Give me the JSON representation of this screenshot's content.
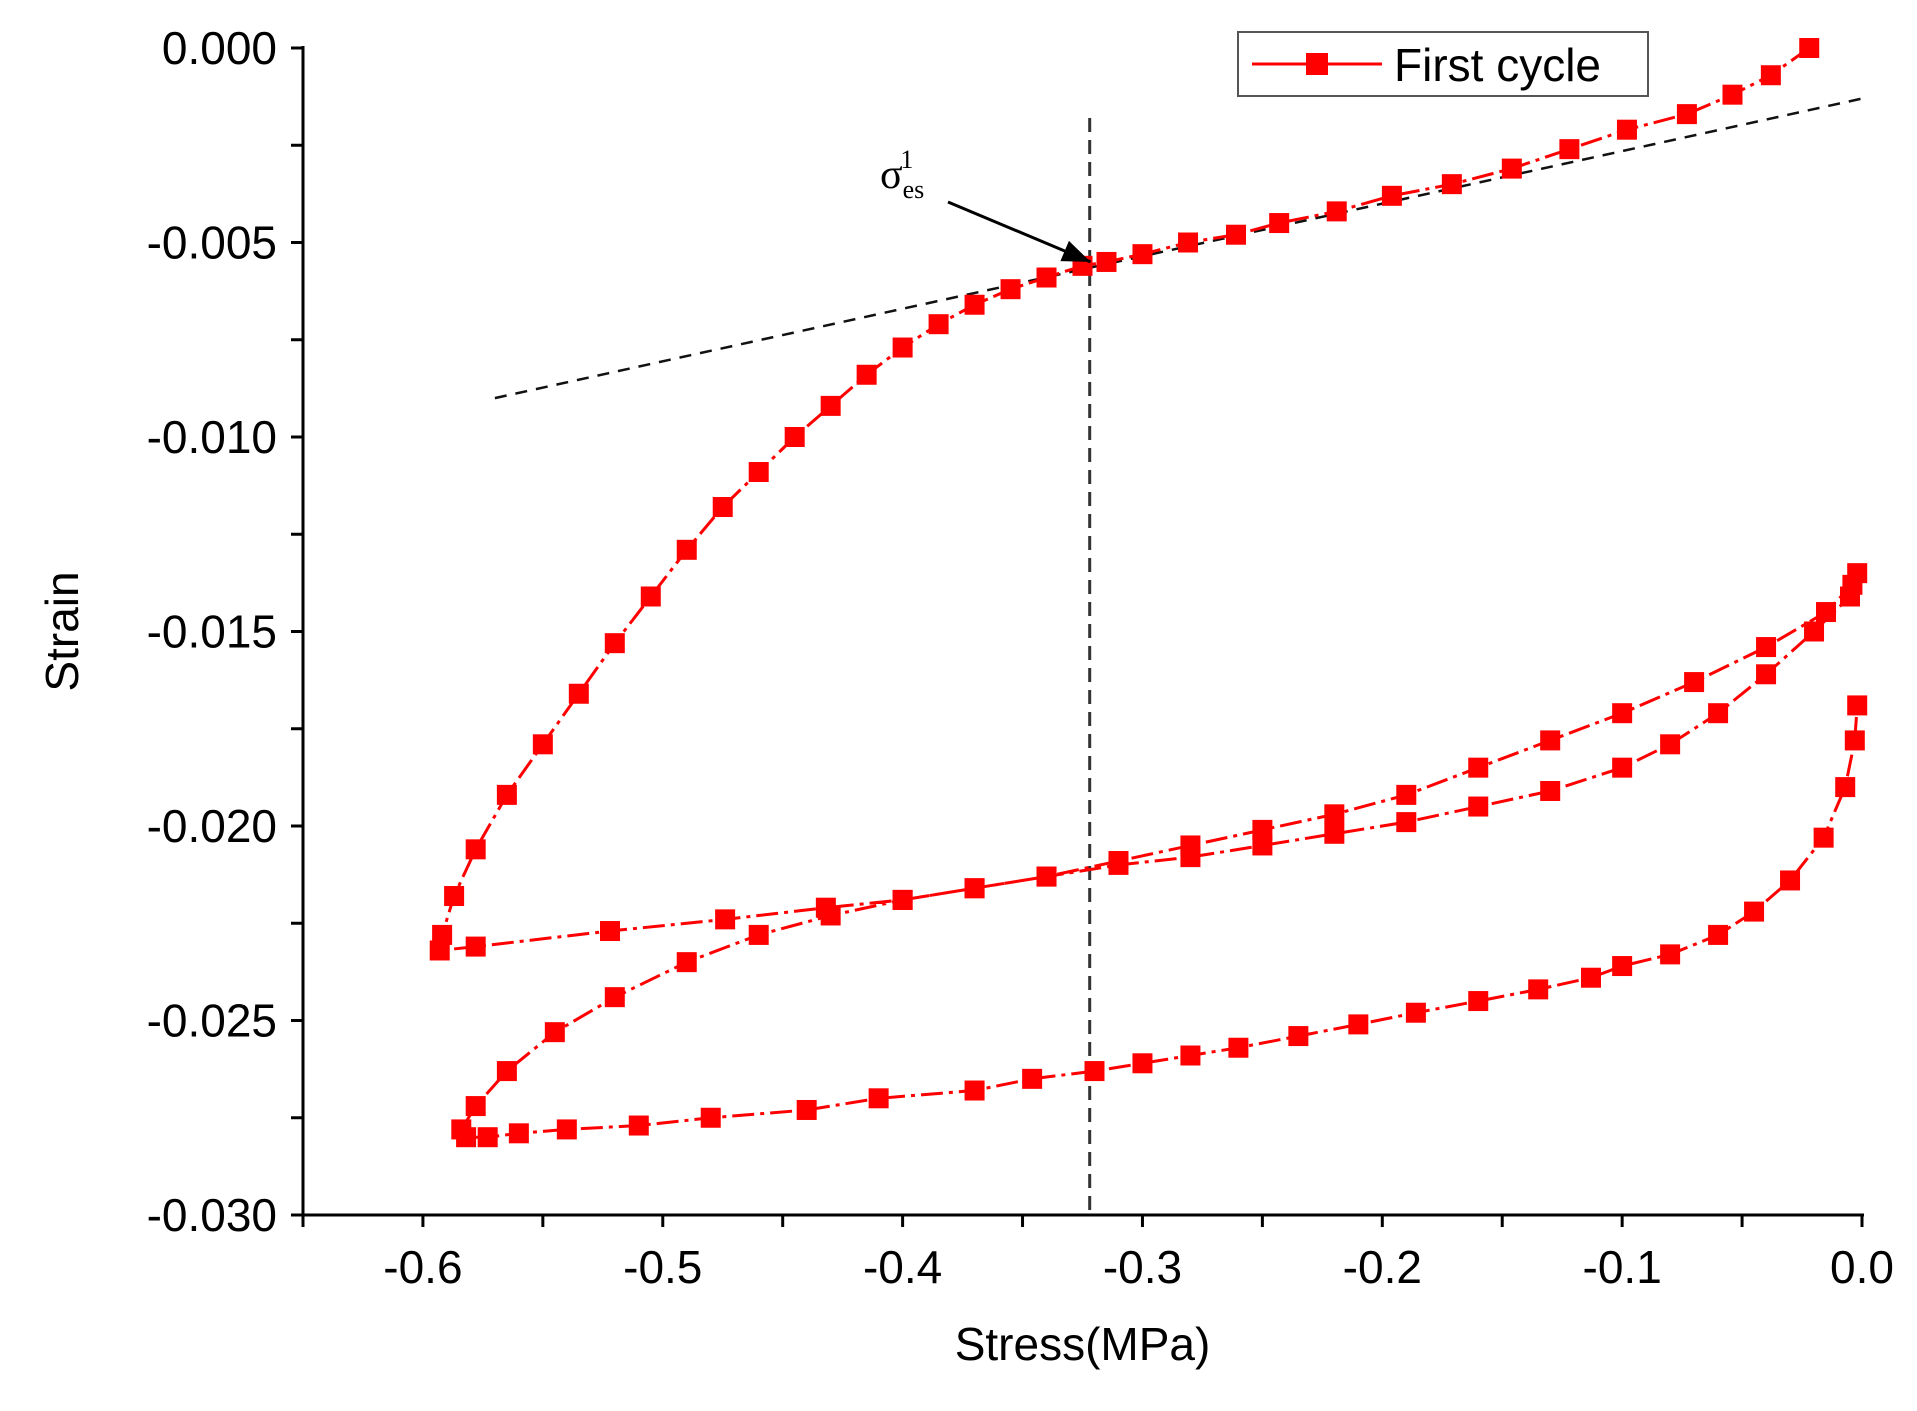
{
  "chart_data": {
    "type": "line",
    "xlabel": "Stress(MPa)",
    "ylabel": "Strain",
    "xlim": [
      -0.65,
      0.0
    ],
    "ylim": [
      -0.03,
      0.0
    ],
    "x_ticks": [
      "-0.6",
      "-0.5",
      "-0.4",
      "-0.3",
      "-0.2",
      "-0.1",
      "0.0"
    ],
    "y_ticks": [
      "0.000",
      "-0.005",
      "-0.010",
      "-0.015",
      "-0.020",
      "-0.025",
      "-0.030"
    ],
    "x_tick_values": [
      -0.6,
      -0.5,
      -0.4,
      -0.3,
      -0.2,
      -0.1,
      0.0
    ],
    "y_tick_values": [
      0.0,
      -0.005,
      -0.01,
      -0.015,
      -0.02,
      -0.025,
      -0.03
    ],
    "grid": false,
    "legend_position": "top-right",
    "series_color": "#ff0000",
    "series": [
      {
        "name": "First cycle",
        "points": [
          [
            -0.022,
            0.0
          ],
          [
            -0.038,
            -0.0007
          ],
          [
            -0.054,
            -0.0012
          ],
          [
            -0.073,
            -0.0017
          ],
          [
            -0.098,
            -0.0021
          ],
          [
            -0.122,
            -0.0026
          ],
          [
            -0.146,
            -0.0031
          ],
          [
            -0.171,
            -0.0035
          ],
          [
            -0.196,
            -0.0038
          ],
          [
            -0.219,
            -0.0042
          ],
          [
            -0.243,
            -0.0045
          ],
          [
            -0.261,
            -0.0048
          ],
          [
            -0.281,
            -0.005
          ],
          [
            -0.3,
            -0.0053
          ],
          [
            -0.315,
            -0.0055
          ],
          [
            -0.325,
            -0.0056
          ],
          [
            -0.34,
            -0.0059
          ],
          [
            -0.355,
            -0.0062
          ],
          [
            -0.37,
            -0.0066
          ],
          [
            -0.385,
            -0.0071
          ],
          [
            -0.4,
            -0.0077
          ],
          [
            -0.415,
            -0.0084
          ],
          [
            -0.43,
            -0.0092
          ],
          [
            -0.445,
            -0.01
          ],
          [
            -0.46,
            -0.0109
          ],
          [
            -0.475,
            -0.0118
          ],
          [
            -0.49,
            -0.0129
          ],
          [
            -0.505,
            -0.0141
          ],
          [
            -0.52,
            -0.0153
          ],
          [
            -0.535,
            -0.0166
          ],
          [
            -0.55,
            -0.0179
          ],
          [
            -0.565,
            -0.0192
          ],
          [
            -0.578,
            -0.0206
          ],
          [
            -0.587,
            -0.0218
          ],
          [
            -0.592,
            -0.0228
          ],
          [
            -0.593,
            -0.0232
          ],
          [
            -0.578,
            -0.0231
          ],
          [
            -0.522,
            -0.0227
          ],
          [
            -0.474,
            -0.0224
          ],
          [
            -0.432,
            -0.0221
          ],
          [
            -0.4,
            -0.0219
          ],
          [
            -0.37,
            -0.0216
          ],
          [
            -0.34,
            -0.0213
          ],
          [
            -0.31,
            -0.0209
          ],
          [
            -0.28,
            -0.0205
          ],
          [
            -0.25,
            -0.0201
          ],
          [
            -0.22,
            -0.0197
          ],
          [
            -0.19,
            -0.0192
          ],
          [
            -0.16,
            -0.0185
          ],
          [
            -0.13,
            -0.0178
          ],
          [
            -0.1,
            -0.0171
          ],
          [
            -0.07,
            -0.0163
          ],
          [
            -0.04,
            -0.0154
          ],
          [
            -0.015,
            -0.0145
          ],
          [
            -0.004,
            -0.0138
          ],
          [
            -0.002,
            -0.0135
          ],
          [
            -0.005,
            -0.0141
          ],
          [
            -0.02,
            -0.015
          ],
          [
            -0.04,
            -0.0161
          ],
          [
            -0.06,
            -0.0171
          ],
          [
            -0.08,
            -0.0179
          ],
          [
            -0.1,
            -0.0185
          ],
          [
            -0.13,
            -0.0191
          ],
          [
            -0.16,
            -0.0195
          ],
          [
            -0.19,
            -0.0199
          ],
          [
            -0.22,
            -0.0202
          ],
          [
            -0.25,
            -0.0205
          ],
          [
            -0.28,
            -0.0208
          ],
          [
            -0.31,
            -0.021
          ],
          [
            -0.34,
            -0.0213
          ],
          [
            -0.37,
            -0.0216
          ],
          [
            -0.4,
            -0.0219
          ],
          [
            -0.43,
            -0.0223
          ],
          [
            -0.46,
            -0.0228
          ],
          [
            -0.49,
            -0.0235
          ],
          [
            -0.52,
            -0.0244
          ],
          [
            -0.545,
            -0.0253
          ],
          [
            -0.565,
            -0.0263
          ],
          [
            -0.578,
            -0.0272
          ],
          [
            -0.584,
            -0.0278
          ],
          [
            -0.582,
            -0.028
          ],
          [
            -0.573,
            -0.028
          ],
          [
            -0.56,
            -0.0279
          ],
          [
            -0.54,
            -0.0278
          ],
          [
            -0.51,
            -0.0277
          ],
          [
            -0.48,
            -0.0275
          ],
          [
            -0.44,
            -0.0273
          ],
          [
            -0.41,
            -0.027
          ],
          [
            -0.37,
            -0.0268
          ],
          [
            -0.346,
            -0.0265
          ],
          [
            -0.32,
            -0.0263
          ],
          [
            -0.3,
            -0.0261
          ],
          [
            -0.28,
            -0.0259
          ],
          [
            -0.26,
            -0.0257
          ],
          [
            -0.235,
            -0.0254
          ],
          [
            -0.21,
            -0.0251
          ],
          [
            -0.186,
            -0.0248
          ],
          [
            -0.16,
            -0.0245
          ],
          [
            -0.135,
            -0.0242
          ],
          [
            -0.113,
            -0.0239
          ],
          [
            -0.1,
            -0.0236
          ],
          [
            -0.08,
            -0.0233
          ],
          [
            -0.06,
            -0.0228
          ],
          [
            -0.045,
            -0.0222
          ],
          [
            -0.03,
            -0.0214
          ],
          [
            -0.016,
            -0.0203
          ],
          [
            -0.007,
            -0.019
          ],
          [
            -0.003,
            -0.0178
          ],
          [
            -0.002,
            -0.0169
          ]
        ]
      }
    ],
    "reference_lines": {
      "vertical_x": -0.322,
      "tangent": {
        "from": [
          -0.57,
          -0.009
        ],
        "to": [
          0.0,
          -0.0013
        ]
      }
    },
    "annotations": [
      {
        "base": "σ",
        "subscript": "es",
        "superscript": "1",
        "point": [
          -0.32,
          -0.0056
        ]
      }
    ]
  }
}
